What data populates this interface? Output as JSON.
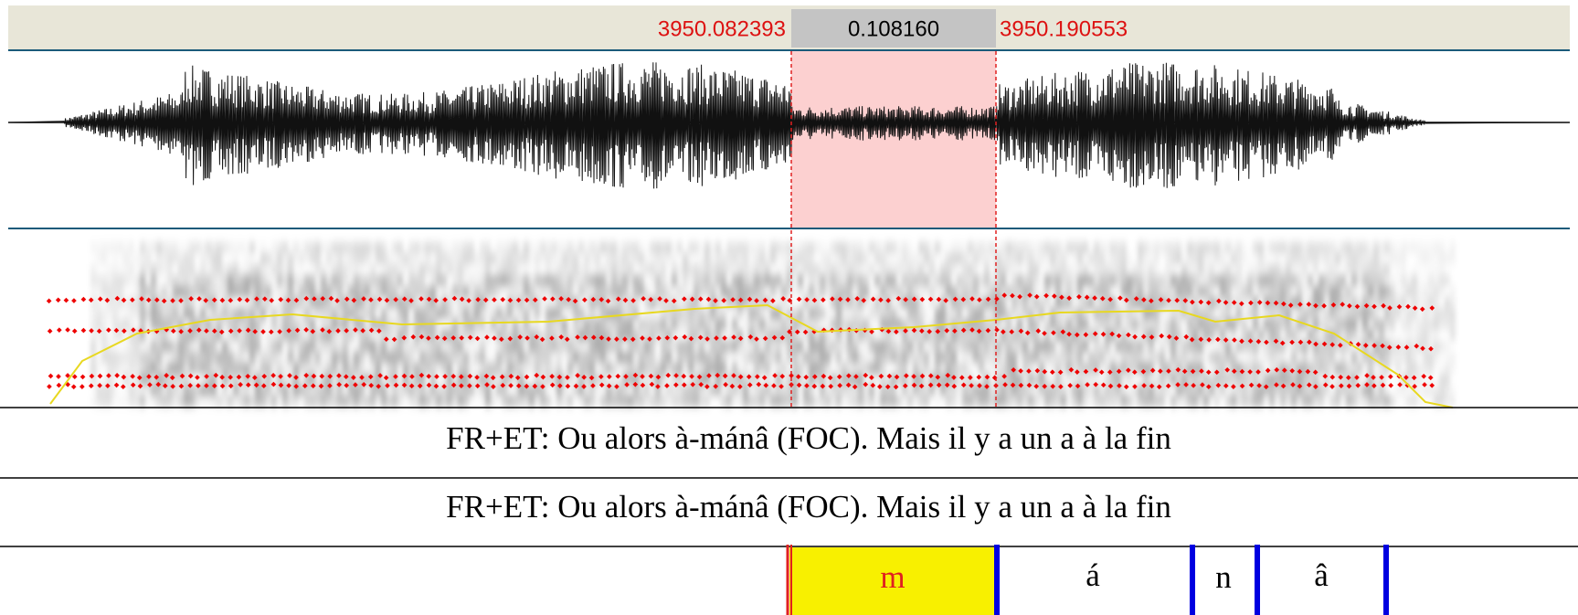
{
  "selection": {
    "start": "3950.082393",
    "duration": "0.108160",
    "end": "3950.190553"
  },
  "tiers": [
    {
      "text": "FR+ET: Ou alors à-mánâ (FOC). Mais il y a un a à la fin"
    },
    {
      "text": "FR+ET: Ou alors à-mánâ (FOC). Mais il y a un a à la fin"
    },
    {
      "intervals": [
        {
          "label": "m"
        },
        {
          "label": "á"
        },
        {
          "label": "n"
        },
        {
          "label": "â"
        }
      ]
    }
  ]
}
